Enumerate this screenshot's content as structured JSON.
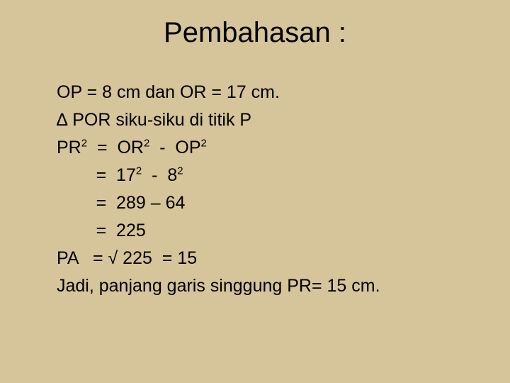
{
  "slide": {
    "title": "Pembahasan :",
    "lines": {
      "l1": "OP = 8 cm dan OR = 17 cm.",
      "l2_a": "∆",
      "l2_b": " POR siku-siku di titik P",
      "l3_a": "PR",
      "l3_b": "  =  OR",
      "l3_c": "  -  OP",
      "l4_a": "        =  17",
      "l4_b": "  -  8",
      "l5": "        =  289 – 64",
      "l6": "        =  225",
      "l7": "PA   = √ 225  = 15",
      "l8": "Jadi, panjang garis singgung PR= 15 cm."
    },
    "styling": {
      "background_color": "#d6c49a",
      "text_color": "#000000",
      "title_fontsize": 40,
      "body_fontsize": 25,
      "font_family": "Arial"
    }
  }
}
